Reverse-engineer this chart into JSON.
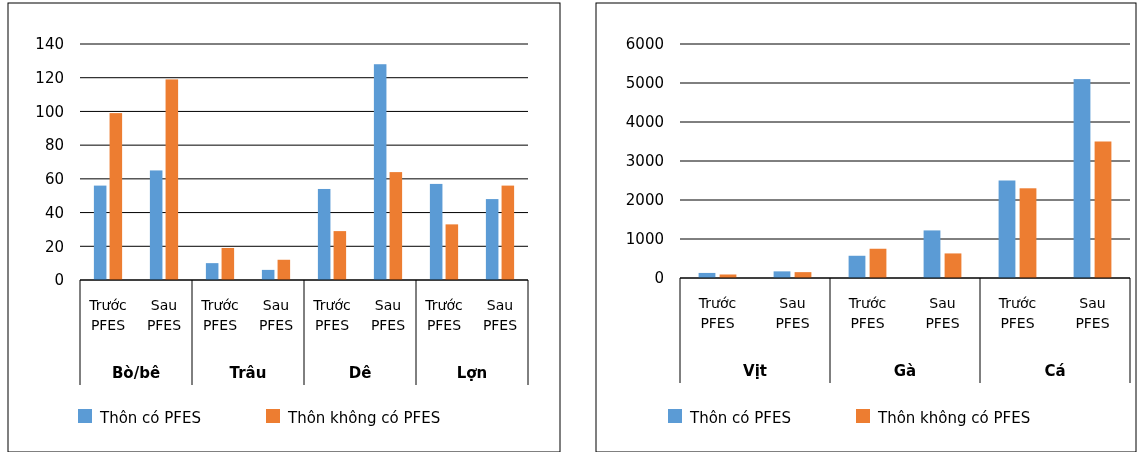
{
  "chart_data": [
    {
      "type": "bar",
      "categories": [
        "Trước\nPFES",
        "Sau\nPFES",
        "Trước\nPFES",
        "Sau\nPFES",
        "Trước\nPFES",
        "Sau\nPFES",
        "Trước\nPFES",
        "Sau\nPFES"
      ],
      "series": [
        {
          "name": "Thôn có PFES",
          "color": "#5b9bd5",
          "values": [
            56,
            65,
            10,
            6,
            54,
            128,
            57,
            48
          ]
        },
        {
          "name": "Thôn không có PFES",
          "color": "#ed7d31",
          "values": [
            99,
            119,
            19,
            12,
            29,
            64,
            33,
            56
          ]
        }
      ],
      "annotations": [
        "Bò/bê",
        "Trâu",
        "Dê",
        "Lợn"
      ],
      "ylim": [
        0,
        140
      ],
      "yticks": [
        0,
        20,
        40,
        60,
        80,
        100,
        120,
        140
      ],
      "grid": "y",
      "legend": "bottom"
    },
    {
      "type": "bar",
      "categories": [
        "Trước\nPFES",
        "Sau\nPFES",
        "Trước\nPFES",
        "Sau\nPFES",
        "Trước\nPFES",
        "Sau\nPFES"
      ],
      "series": [
        {
          "name": "Thôn có PFES",
          "color": "#5b9bd5",
          "values": [
            130,
            170,
            570,
            1220,
            2500,
            5100
          ]
        },
        {
          "name": "Thôn không có PFES",
          "color": "#ed7d31",
          "values": [
            90,
            150,
            750,
            630,
            2300,
            3500
          ]
        }
      ],
      "annotations": [
        "Vịt",
        "Gà",
        "Cá"
      ],
      "ylim": [
        0,
        6000
      ],
      "yticks": [
        0,
        1000,
        2000,
        3000,
        4000,
        5000,
        6000
      ],
      "grid": "y",
      "legend": "bottom"
    }
  ]
}
